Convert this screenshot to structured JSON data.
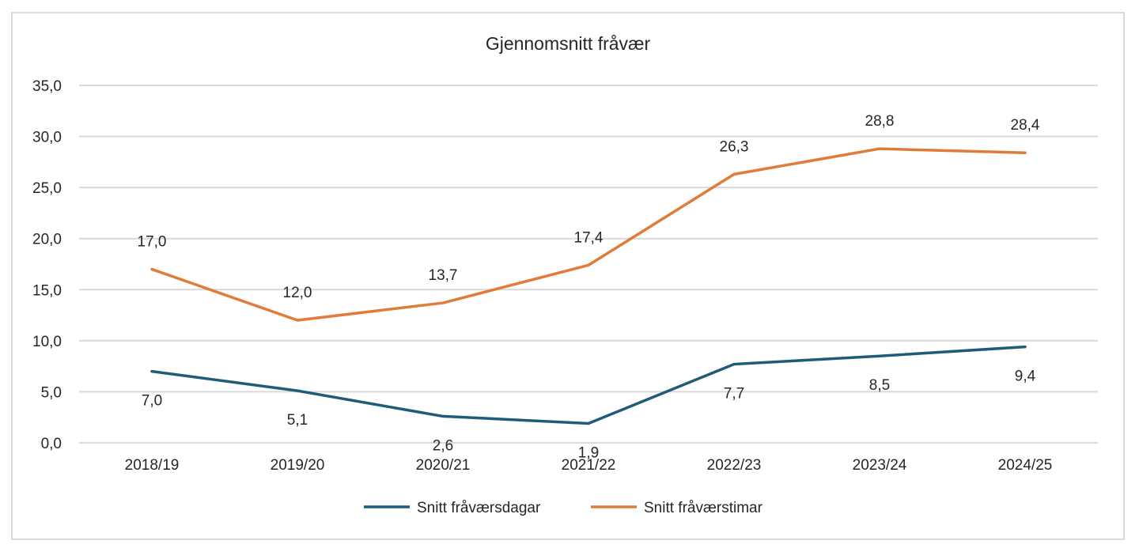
{
  "chart_data": {
    "type": "line",
    "title": "Gjennomsnitt fråvær",
    "categories": [
      "2018/19",
      "2019/20",
      "2020/21",
      "2021/22",
      "2022/23",
      "2023/24",
      "2024/25"
    ],
    "ylim": [
      0,
      35
    ],
    "yticks": [
      "0,0",
      "5,0",
      "10,0",
      "15,0",
      "20,0",
      "25,0",
      "30,0",
      "35,0"
    ],
    "grid": true,
    "legend_position": "bottom",
    "series": [
      {
        "name": "Snitt fråværsdagar",
        "color": "#1f5c7a",
        "values": [
          7.0,
          5.1,
          2.6,
          1.9,
          7.7,
          8.5,
          9.4
        ],
        "labels": [
          "7,0",
          "5,1",
          "2,6",
          "1,9",
          "7,7",
          "8,5",
          "9,4"
        ],
        "label_position": "below"
      },
      {
        "name": "Snitt fråværstimar",
        "color": "#e07b39",
        "values": [
          17.0,
          12.0,
          13.7,
          17.4,
          26.3,
          28.8,
          28.4
        ],
        "labels": [
          "17,0",
          "12,0",
          "13,7",
          "17,4",
          "26,3",
          "28,8",
          "28,4"
        ],
        "label_position": "above"
      }
    ]
  }
}
